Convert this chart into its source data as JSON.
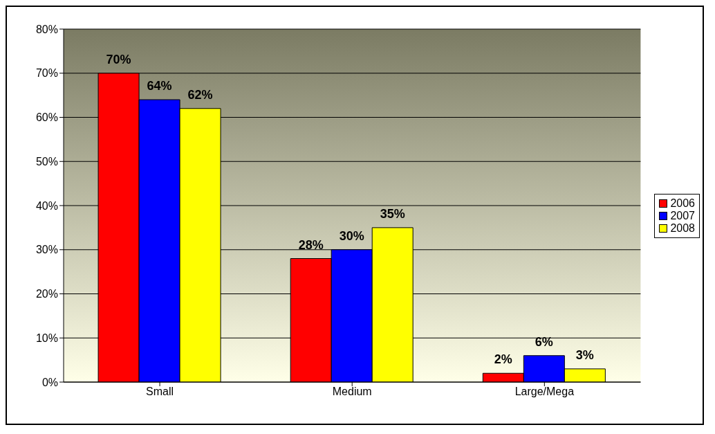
{
  "chart_data": {
    "type": "bar",
    "categories": [
      "Small",
      "Medium",
      "Large/Mega"
    ],
    "series": [
      {
        "name": "2006",
        "color": "#ff0000",
        "values": [
          70,
          28,
          2
        ],
        "value_labels": [
          "70%",
          "28%",
          "2%"
        ]
      },
      {
        "name": "2007",
        "color": "#0000ff",
        "values": [
          64,
          30,
          6
        ],
        "value_labels": [
          "64%",
          "30%",
          "6%"
        ]
      },
      {
        "name": "2008",
        "color": "#ffff00",
        "values": [
          62,
          35,
          3
        ],
        "value_labels": [
          "62%",
          "35%",
          "3%"
        ]
      }
    ],
    "ylim": [
      0,
      80
    ],
    "yticks": [
      {
        "value": 0,
        "label": "0%"
      },
      {
        "value": 10,
        "label": "10%"
      },
      {
        "value": 20,
        "label": "20%"
      },
      {
        "value": 30,
        "label": "30%"
      },
      {
        "value": 40,
        "label": "40%"
      },
      {
        "value": 50,
        "label": "50%"
      },
      {
        "value": 60,
        "label": "60%"
      },
      {
        "value": 70,
        "label": "70%"
      },
      {
        "value": 80,
        "label": "80%"
      }
    ],
    "grid": "y",
    "legend": "right"
  }
}
